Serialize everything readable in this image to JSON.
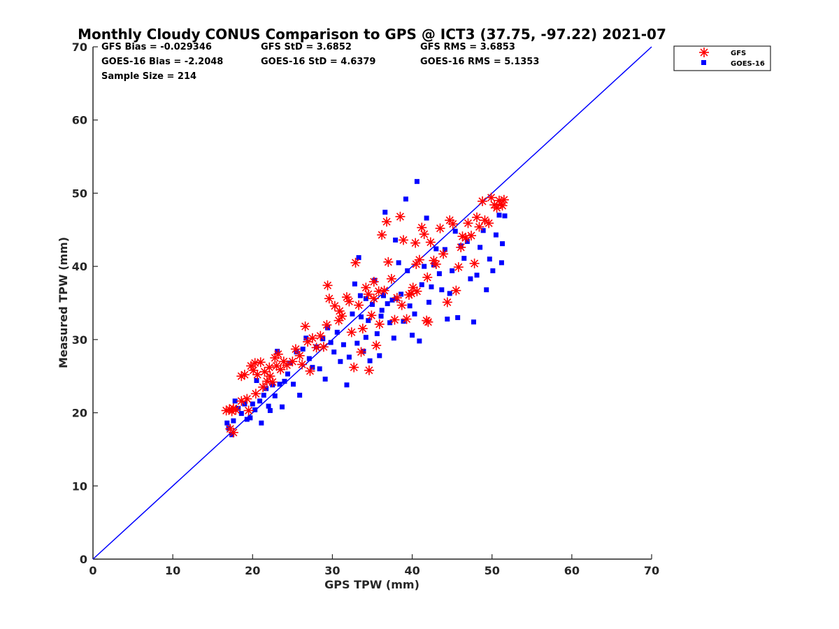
{
  "chart_data": {
    "type": "scatter",
    "title": "Monthly Cloudy CONUS Comparison to GPS @ ICT3 (37.75, -97.22) 2021-07",
    "xlabel": "GPS TPW (mm)",
    "ylabel": "Measured TPW (mm)",
    "xlim": [
      0,
      70
    ],
    "ylim": [
      0,
      70
    ],
    "xticks": [
      "0",
      "10",
      "20",
      "30",
      "40",
      "50",
      "60",
      "70"
    ],
    "yticks": [
      "0",
      "10",
      "20",
      "30",
      "40",
      "50",
      "60",
      "70"
    ],
    "grid": false,
    "legend_position": "top-right, outside plot",
    "reference_line": {
      "x": [
        0,
        70
      ],
      "y": [
        0,
        70
      ],
      "color": "#0000ff"
    },
    "stats": [
      "GFS Bias = -0.029346",
      "GFS StD = 3.6852",
      "GFS RMS = 3.6853",
      "GOES-16 Bias = -2.2048",
      "GOES-16 StD = 4.6379",
      "GOES-16 RMS = 5.1353",
      "Sample Size = 214"
    ],
    "series": [
      {
        "name": "GFS",
        "marker": "asterisk",
        "color": "#ff0000",
        "points": [
          [
            16.7,
            20.3
          ],
          [
            17.1,
            20.5
          ],
          [
            17.4,
            20.2
          ],
          [
            17.6,
            20.6
          ],
          [
            17.9,
            20.4
          ],
          [
            17.2,
            17.8
          ],
          [
            17.6,
            17.3
          ],
          [
            18.6,
            21.6
          ],
          [
            18.6,
            25.0
          ],
          [
            19.0,
            25.2
          ],
          [
            19.3,
            21.9
          ],
          [
            19.5,
            20.3
          ],
          [
            19.8,
            26.4
          ],
          [
            20.1,
            25.8
          ],
          [
            20.3,
            26.8
          ],
          [
            20.6,
            25.2
          ],
          [
            20.4,
            22.6
          ],
          [
            21.0,
            26.9
          ],
          [
            21.3,
            23.5
          ],
          [
            21.5,
            25.6
          ],
          [
            21.8,
            24.3
          ],
          [
            22.1,
            26.2
          ],
          [
            22.2,
            25.0
          ],
          [
            22.5,
            24.2
          ],
          [
            22.8,
            27.5
          ],
          [
            23.0,
            26.4
          ],
          [
            23.2,
            28.0
          ],
          [
            23.5,
            25.9
          ],
          [
            23.9,
            27.0
          ],
          [
            24.3,
            26.5
          ],
          [
            25.0,
            27.0
          ],
          [
            25.4,
            28.7
          ],
          [
            25.9,
            27.8
          ],
          [
            26.2,
            26.6
          ],
          [
            26.6,
            31.8
          ],
          [
            27.2,
            25.7
          ],
          [
            27.5,
            30.2
          ],
          [
            28.0,
            28.9
          ],
          [
            28.5,
            30.5
          ],
          [
            28.9,
            29.0
          ],
          [
            29.3,
            32.0
          ],
          [
            29.6,
            35.6
          ],
          [
            29.4,
            37.4
          ],
          [
            30.3,
            34.6
          ],
          [
            30.8,
            32.6
          ],
          [
            31.2,
            33.2
          ],
          [
            31.8,
            35.8
          ],
          [
            32.1,
            35.2
          ],
          [
            32.4,
            31.0
          ],
          [
            32.7,
            26.2
          ],
          [
            32.9,
            40.5
          ],
          [
            33.3,
            34.7
          ],
          [
            33.6,
            28.3
          ],
          [
            33.8,
            31.5
          ],
          [
            34.2,
            37.1
          ],
          [
            34.5,
            36.2
          ],
          [
            34.6,
            25.8
          ],
          [
            34.9,
            33.3
          ],
          [
            35.2,
            35.6
          ],
          [
            35.5,
            29.2
          ],
          [
            35.8,
            36.6
          ],
          [
            35.9,
            32.1
          ],
          [
            36.2,
            44.3
          ],
          [
            36.5,
            36.7
          ],
          [
            36.8,
            46.1
          ],
          [
            37.0,
            40.6
          ],
          [
            37.4,
            38.3
          ],
          [
            37.8,
            32.7
          ],
          [
            38.1,
            35.7
          ],
          [
            38.5,
            46.8
          ],
          [
            38.7,
            34.7
          ],
          [
            38.9,
            43.6
          ],
          [
            39.3,
            32.8
          ],
          [
            39.6,
            36.1
          ],
          [
            39.9,
            36.3
          ],
          [
            40.1,
            37.1
          ],
          [
            40.4,
            43.2
          ],
          [
            40.6,
            36.6
          ],
          [
            40.9,
            40.9
          ],
          [
            41.2,
            45.3
          ],
          [
            41.5,
            44.4
          ],
          [
            41.8,
            32.6
          ],
          [
            41.9,
            38.5
          ],
          [
            42.3,
            43.3
          ],
          [
            42.7,
            40.8
          ],
          [
            43.0,
            40.3
          ],
          [
            43.5,
            45.2
          ],
          [
            43.9,
            41.7
          ],
          [
            44.4,
            35.1
          ],
          [
            44.7,
            46.3
          ],
          [
            45.1,
            45.8
          ],
          [
            45.5,
            36.7
          ],
          [
            45.8,
            39.9
          ],
          [
            46.1,
            42.6
          ],
          [
            46.3,
            44.1
          ],
          [
            46.7,
            43.9
          ],
          [
            47.0,
            45.9
          ],
          [
            47.4,
            44.2
          ],
          [
            47.8,
            40.4
          ],
          [
            48.1,
            46.7
          ],
          [
            48.4,
            45.4
          ],
          [
            48.8,
            48.9
          ],
          [
            49.1,
            46.3
          ],
          [
            49.6,
            45.9
          ],
          [
            49.9,
            49.4
          ],
          [
            50.3,
            48.4
          ],
          [
            50.6,
            48.0
          ],
          [
            50.9,
            49.0
          ],
          [
            51.1,
            48.5
          ],
          [
            51.3,
            48.3
          ],
          [
            51.5,
            49.1
          ],
          [
            42.0,
            32.4
          ],
          [
            40.5,
            40.3
          ],
          [
            35.2,
            37.9
          ],
          [
            30.9,
            33.9
          ],
          [
            26.9,
            29.7
          ]
        ]
      },
      {
        "name": "GOES-16",
        "marker": "square",
        "color": "#0000ff",
        "points": [
          [
            16.8,
            18.6
          ],
          [
            17.0,
            17.9
          ],
          [
            17.4,
            17.0
          ],
          [
            17.6,
            18.9
          ],
          [
            17.8,
            21.6
          ],
          [
            18.2,
            20.6
          ],
          [
            18.6,
            19.9
          ],
          [
            19.0,
            21.2
          ],
          [
            19.3,
            19.1
          ],
          [
            19.7,
            19.3
          ],
          [
            20.0,
            21.2
          ],
          [
            20.3,
            20.4
          ],
          [
            20.5,
            24.4
          ],
          [
            20.9,
            21.6
          ],
          [
            21.1,
            18.6
          ],
          [
            21.4,
            22.4
          ],
          [
            21.7,
            23.3
          ],
          [
            22.0,
            20.9
          ],
          [
            22.2,
            20.3
          ],
          [
            22.5,
            23.8
          ],
          [
            22.8,
            22.3
          ],
          [
            23.1,
            28.4
          ],
          [
            23.4,
            23.9
          ],
          [
            23.7,
            20.8
          ],
          [
            24.0,
            24.3
          ],
          [
            24.4,
            25.3
          ],
          [
            24.7,
            26.8
          ],
          [
            25.1,
            23.9
          ],
          [
            25.5,
            28.3
          ],
          [
            25.9,
            22.4
          ],
          [
            26.3,
            28.7
          ],
          [
            26.7,
            30.2
          ],
          [
            27.1,
            27.4
          ],
          [
            27.5,
            26.2
          ],
          [
            28.0,
            29.0
          ],
          [
            28.4,
            26.0
          ],
          [
            28.8,
            30.1
          ],
          [
            29.1,
            24.6
          ],
          [
            29.4,
            31.6
          ],
          [
            29.8,
            29.6
          ],
          [
            30.2,
            28.3
          ],
          [
            30.6,
            31.0
          ],
          [
            31.0,
            27.0
          ],
          [
            31.4,
            29.3
          ],
          [
            31.8,
            23.8
          ],
          [
            32.1,
            27.6
          ],
          [
            32.5,
            33.5
          ],
          [
            32.8,
            37.6
          ],
          [
            33.1,
            29.5
          ],
          [
            33.3,
            41.2
          ],
          [
            33.6,
            33.1
          ],
          [
            33.9,
            28.4
          ],
          [
            34.2,
            30.3
          ],
          [
            34.5,
            32.6
          ],
          [
            34.7,
            27.1
          ],
          [
            35.0,
            34.8
          ],
          [
            35.3,
            38.1
          ],
          [
            35.6,
            30.8
          ],
          [
            35.9,
            27.8
          ],
          [
            36.1,
            33.2
          ],
          [
            36.4,
            36.0
          ],
          [
            36.6,
            47.4
          ],
          [
            36.9,
            34.9
          ],
          [
            37.2,
            32.3
          ],
          [
            37.5,
            35.4
          ],
          [
            37.7,
            30.2
          ],
          [
            38.0,
            35.6
          ],
          [
            38.3,
            40.5
          ],
          [
            38.6,
            36.2
          ],
          [
            38.9,
            32.5
          ],
          [
            39.2,
            49.2
          ],
          [
            39.4,
            39.4
          ],
          [
            39.7,
            34.6
          ],
          [
            40.0,
            30.6
          ],
          [
            40.3,
            33.5
          ],
          [
            40.6,
            51.6
          ],
          [
            40.9,
            29.8
          ],
          [
            41.2,
            37.5
          ],
          [
            41.5,
            40.0
          ],
          [
            41.8,
            46.6
          ],
          [
            42.1,
            35.1
          ],
          [
            42.4,
            37.2
          ],
          [
            42.7,
            40.2
          ],
          [
            43.0,
            42.4
          ],
          [
            43.4,
            39.0
          ],
          [
            43.7,
            36.8
          ],
          [
            44.1,
            42.3
          ],
          [
            44.4,
            32.8
          ],
          [
            44.7,
            36.3
          ],
          [
            45.0,
            39.4
          ],
          [
            45.4,
            44.8
          ],
          [
            45.7,
            33.0
          ],
          [
            46.1,
            42.8
          ],
          [
            46.5,
            41.1
          ],
          [
            46.9,
            43.4
          ],
          [
            47.3,
            38.3
          ],
          [
            47.7,
            32.4
          ],
          [
            48.1,
            38.8
          ],
          [
            48.5,
            42.6
          ],
          [
            48.9,
            44.9
          ],
          [
            49.3,
            36.8
          ],
          [
            49.7,
            41.0
          ],
          [
            50.1,
            39.4
          ],
          [
            50.5,
            44.3
          ],
          [
            50.9,
            47.0
          ],
          [
            51.3,
            43.1
          ],
          [
            51.6,
            46.9
          ],
          [
            51.2,
            40.5
          ],
          [
            36.2,
            34.0
          ],
          [
            34.2,
            35.6
          ],
          [
            37.9,
            43.6
          ],
          [
            33.5,
            36.0
          ]
        ]
      }
    ]
  }
}
